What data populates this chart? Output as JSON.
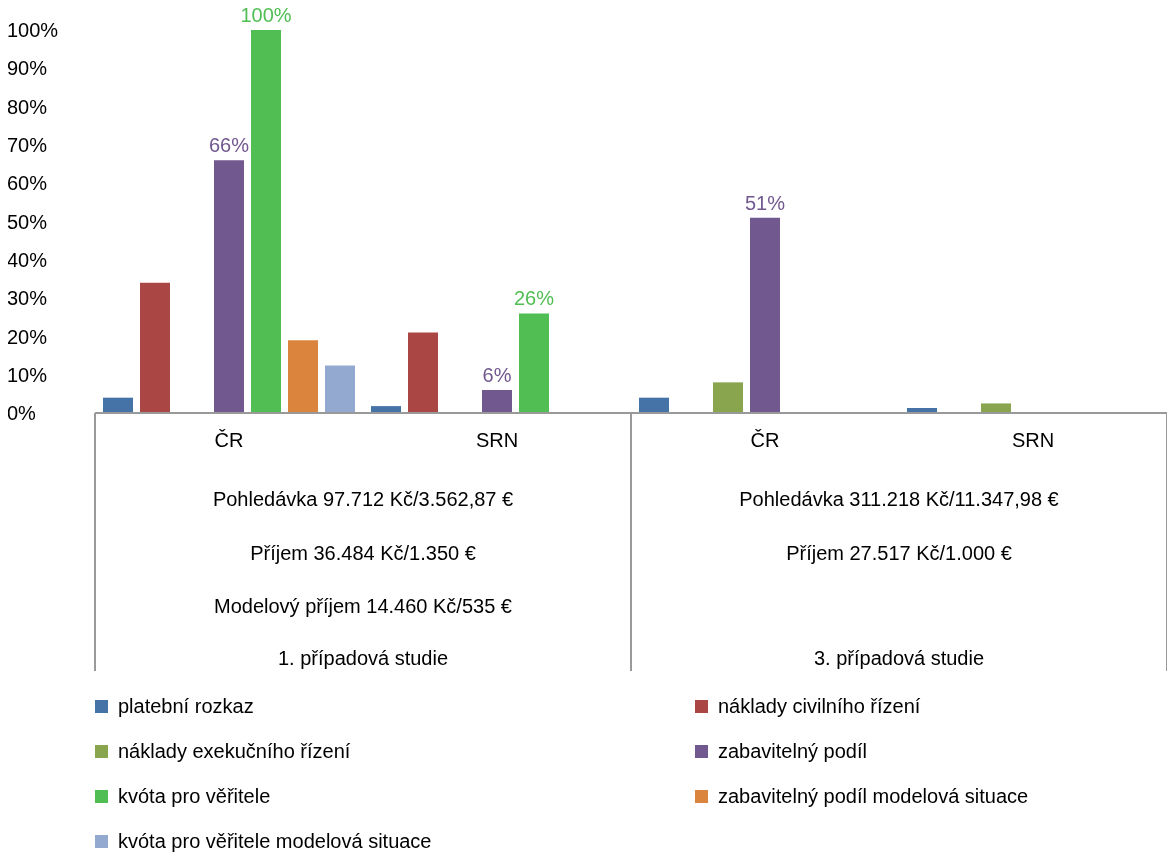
{
  "chart_data": {
    "type": "bar",
    "categories": [
      "ČR",
      "SRN",
      "ČR",
      "SRN"
    ],
    "series": [
      {
        "name": "platební rozkaz",
        "color": "#4572a7",
        "values": [
          4,
          1.8,
          4,
          1.3
        ]
      },
      {
        "name": "náklady civilního řízení",
        "color": "#aa4643",
        "values": [
          34,
          21,
          null,
          null
        ]
      },
      {
        "name": "náklady exekučního řízení",
        "color": "#89a54e",
        "values": [
          null,
          null,
          8,
          2.5
        ]
      },
      {
        "name": "zabavitelný podíl",
        "color": "#71588f",
        "values": [
          66,
          6,
          51,
          null
        ],
        "value_labels": [
          "66%",
          "6%",
          "51%",
          null
        ]
      },
      {
        "name": "kvóta pro věřitele",
        "color": "#50be53",
        "values": [
          100,
          26,
          null,
          null
        ],
        "value_labels": [
          "100%",
          "26%",
          null,
          null
        ]
      },
      {
        "name": "zabavitelný podíl modelová situace",
        "color": "#db843d",
        "values": [
          19,
          null,
          null,
          null
        ]
      },
      {
        "name": "kvóta pro věřitele modelová situace",
        "color": "#93a9cf",
        "values": [
          12.4,
          null,
          null,
          null
        ]
      }
    ],
    "ylim": [
      0,
      100
    ],
    "yticks": [
      {
        "value": 0,
        "label": "0%"
      },
      {
        "value": 10,
        "label": "10%"
      },
      {
        "value": 20,
        "label": "20%"
      },
      {
        "value": 30,
        "label": "30%"
      },
      {
        "value": 40,
        "label": "40%"
      },
      {
        "value": 50,
        "label": "50%"
      },
      {
        "value": 60,
        "label": "60%"
      },
      {
        "value": 70,
        "label": "70%"
      },
      {
        "value": 80,
        "label": "80%"
      },
      {
        "value": 90,
        "label": "90%"
      },
      {
        "value": 100,
        "label": "100%"
      }
    ],
    "annotations": [
      "Pohledávka 97.712 Kč/3.562,87 €",
      "Příjem 36.484 Kč/1.350 €",
      "Modelový příjem 14.460 Kč/535 €",
      "1. případová studie",
      "Pohledávka 311.218 Kč/11.347,98 €",
      "Příjem 27.517 Kč/1.000 €",
      "3. případová studie"
    ],
    "grid": false,
    "legend": "bottom"
  }
}
